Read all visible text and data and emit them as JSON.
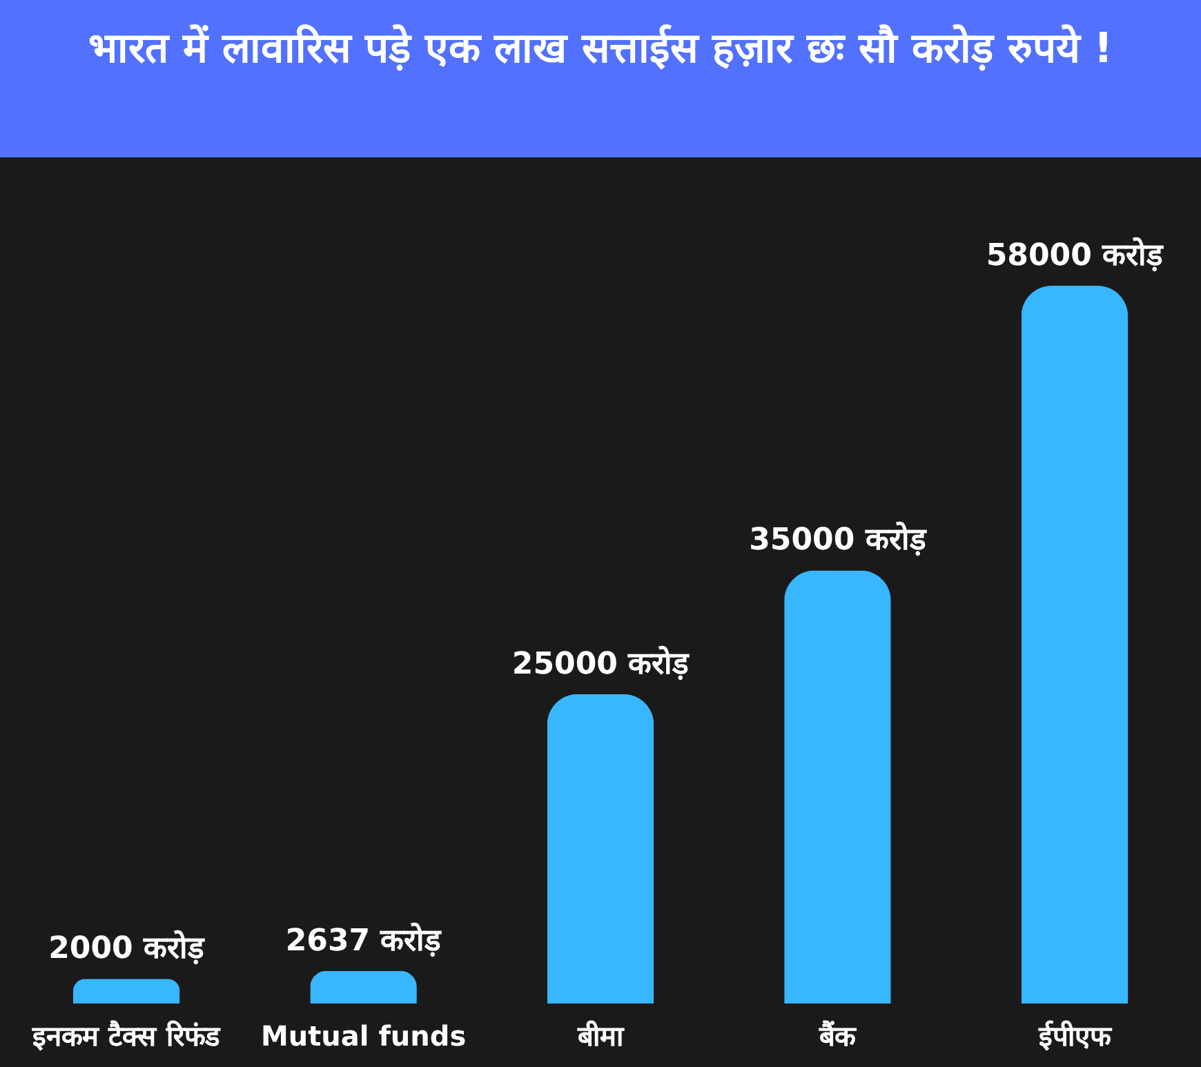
{
  "chart_data": {
    "type": "bar",
    "title": "भारत में लावारिस पड़े एक लाख सत्ताईस हज़ार छः सौ करोड़ रुपये !",
    "categories": [
      "इनकम टैक्स रिफंड",
      "Mutual funds",
      "बीमा",
      "बैंक",
      "ईपीएफ"
    ],
    "values": [
      2000,
      2637,
      25000,
      35000,
      58000
    ],
    "value_labels": [
      "2000 करोड़",
      "2637 करोड़",
      "25000 करोड़",
      "35000 करोड़",
      "58000 करोड़"
    ],
    "color": "#38b6ff"
  }
}
